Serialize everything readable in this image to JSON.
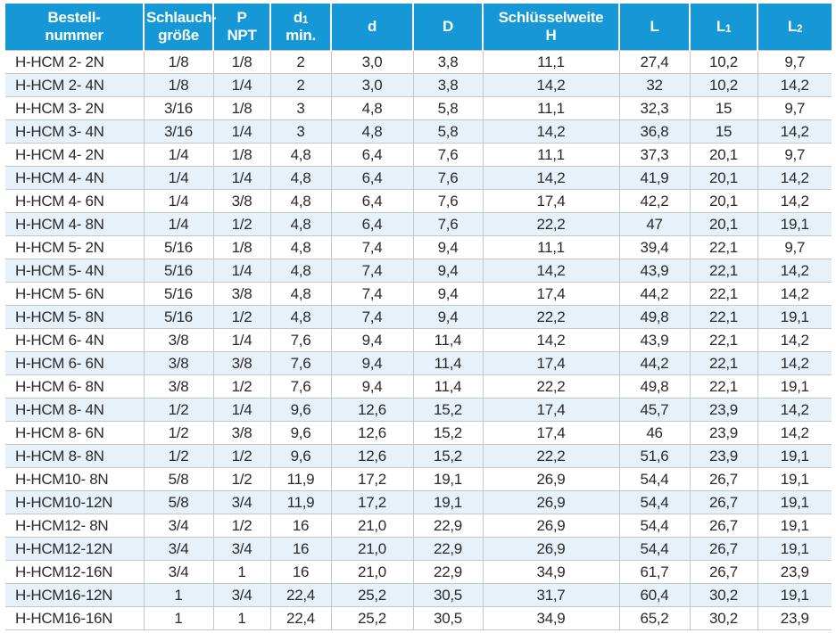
{
  "colors": {
    "header_bg": "#1598d5",
    "header_text": "#ffffff",
    "row_alt_bg": "#e6f1f9",
    "grid_line": "#c3c7ca",
    "body_text": "#2a2a2a"
  },
  "table": {
    "columns": [
      {
        "key": "bestellnummer",
        "line1": "Bestell-",
        "line2": "nummer"
      },
      {
        "key": "schlauchgroesse",
        "line1": "Schlauch-",
        "line2": "größe"
      },
      {
        "key": "p-npt",
        "line1": "P",
        "line2": "NPT"
      },
      {
        "key": "d1-min",
        "line1": "d",
        "sub1": "1",
        "line2": "min."
      },
      {
        "key": "d",
        "line1": "d"
      },
      {
        "key": "d-cap",
        "line1": "D"
      },
      {
        "key": "schluesselweite-h",
        "line1": "Schlüsselweite",
        "line2": "H"
      },
      {
        "key": "l",
        "line1": "L"
      },
      {
        "key": "l1",
        "line1": "L",
        "sub1": "1"
      },
      {
        "key": "l2",
        "line1": "L",
        "sub1": "2"
      }
    ],
    "rows": [
      [
        "H-HCM 2- 2N",
        "1/8",
        "1/8",
        "2",
        "3,0",
        "3,8",
        "11,1",
        "27,4",
        "10,2",
        "9,7"
      ],
      [
        "H-HCM 2- 4N",
        "1/8",
        "1/4",
        "2",
        "3,0",
        "3,8",
        "14,2",
        "32",
        "10,2",
        "14,2"
      ],
      [
        "H-HCM 3- 2N",
        "3/16",
        "1/8",
        "3",
        "4,8",
        "5,8",
        "11,1",
        "32,3",
        "15",
        "9,7"
      ],
      [
        "H-HCM 3- 4N",
        "3/16",
        "1/4",
        "3",
        "4,8",
        "5,8",
        "14,2",
        "36,8",
        "15",
        "14,2"
      ],
      [
        "H-HCM 4- 2N",
        "1/4",
        "1/8",
        "4,8",
        "6,4",
        "7,6",
        "11,1",
        "37,3",
        "20,1",
        "9,7"
      ],
      [
        "H-HCM 4- 4N",
        "1/4",
        "1/4",
        "4,8",
        "6,4",
        "7,6",
        "14,2",
        "41,9",
        "20,1",
        "14,2"
      ],
      [
        "H-HCM 4- 6N",
        "1/4",
        "3/8",
        "4,8",
        "6,4",
        "7,6",
        "17,4",
        "42,2",
        "20,1",
        "14,2"
      ],
      [
        "H-HCM 4- 8N",
        "1/4",
        "1/2",
        "4,8",
        "6,4",
        "7,6",
        "22,2",
        "47",
        "20,1",
        "19,1"
      ],
      [
        "H-HCM 5- 2N",
        "5/16",
        "1/8",
        "4,8",
        "7,4",
        "9,4",
        "11,1",
        "39,4",
        "22,1",
        "9,7"
      ],
      [
        "H-HCM 5- 4N",
        "5/16",
        "1/4",
        "4,8",
        "7,4",
        "9,4",
        "14,2",
        "43,9",
        "22,1",
        "14,2"
      ],
      [
        "H-HCM 5- 6N",
        "5/16",
        "3/8",
        "4,8",
        "7,4",
        "9,4",
        "17,4",
        "44,2",
        "22,1",
        "14,2"
      ],
      [
        "H-HCM 5- 8N",
        "5/16",
        "1/2",
        "4,8",
        "7,4",
        "9,4",
        "22,2",
        "49,8",
        "22,1",
        "19,1"
      ],
      [
        "H-HCM 6- 4N",
        "3/8",
        "1/4",
        "7,6",
        "9,4",
        "11,4",
        "14,2",
        "43,9",
        "22,1",
        "14,2"
      ],
      [
        "H-HCM 6- 6N",
        "3/8",
        "3/8",
        "7,6",
        "9,4",
        "11,4",
        "17,4",
        "44,2",
        "22,1",
        "14,2"
      ],
      [
        "H-HCM 6- 8N",
        "3/8",
        "1/2",
        "7,6",
        "9,4",
        "11,4",
        "22,2",
        "49,8",
        "22,1",
        "19,1"
      ],
      [
        "H-HCM 8- 4N",
        "1/2",
        "1/4",
        "9,6",
        "12,6",
        "15,2",
        "17,4",
        "45,7",
        "23,9",
        "14,2"
      ],
      [
        "H-HCM 8- 6N",
        "1/2",
        "3/8",
        "9,6",
        "12,6",
        "15,2",
        "17,4",
        "46",
        "23,9",
        "14,2"
      ],
      [
        "H-HCM 8- 8N",
        "1/2",
        "1/2",
        "9,6",
        "12,6",
        "15,2",
        "22,2",
        "51,6",
        "23,9",
        "19,1"
      ],
      [
        "H-HCM10- 8N",
        "5/8",
        "1/2",
        "11,9",
        "17,2",
        "19,1",
        "26,9",
        "54,4",
        "26,7",
        "19,1"
      ],
      [
        "H-HCM10-12N",
        "5/8",
        "3/4",
        "11,9",
        "17,2",
        "19,1",
        "26,9",
        "54,4",
        "26,7",
        "19,1"
      ],
      [
        "H-HCM12- 8N",
        "3/4",
        "1/2",
        "16",
        "21,0",
        "22,9",
        "26,9",
        "54,4",
        "26,7",
        "19,1"
      ],
      [
        "H-HCM12-12N",
        "3/4",
        "3/4",
        "16",
        "21,0",
        "22,9",
        "26,9",
        "54,4",
        "26,7",
        "19,1"
      ],
      [
        "H-HCM12-16N",
        "3/4",
        "1",
        "16",
        "21,0",
        "22,9",
        "34,9",
        "61,7",
        "26,7",
        "23,9"
      ],
      [
        "H-HCM16-12N",
        "1",
        "3/4",
        "22,4",
        "25,2",
        "30,5",
        "31,7",
        "60,4",
        "30,2",
        "19,1"
      ],
      [
        "H-HCM16-16N",
        "1",
        "1",
        "22,4",
        "25,2",
        "30,5",
        "34,9",
        "65,2",
        "30,2",
        "23,9"
      ]
    ]
  }
}
